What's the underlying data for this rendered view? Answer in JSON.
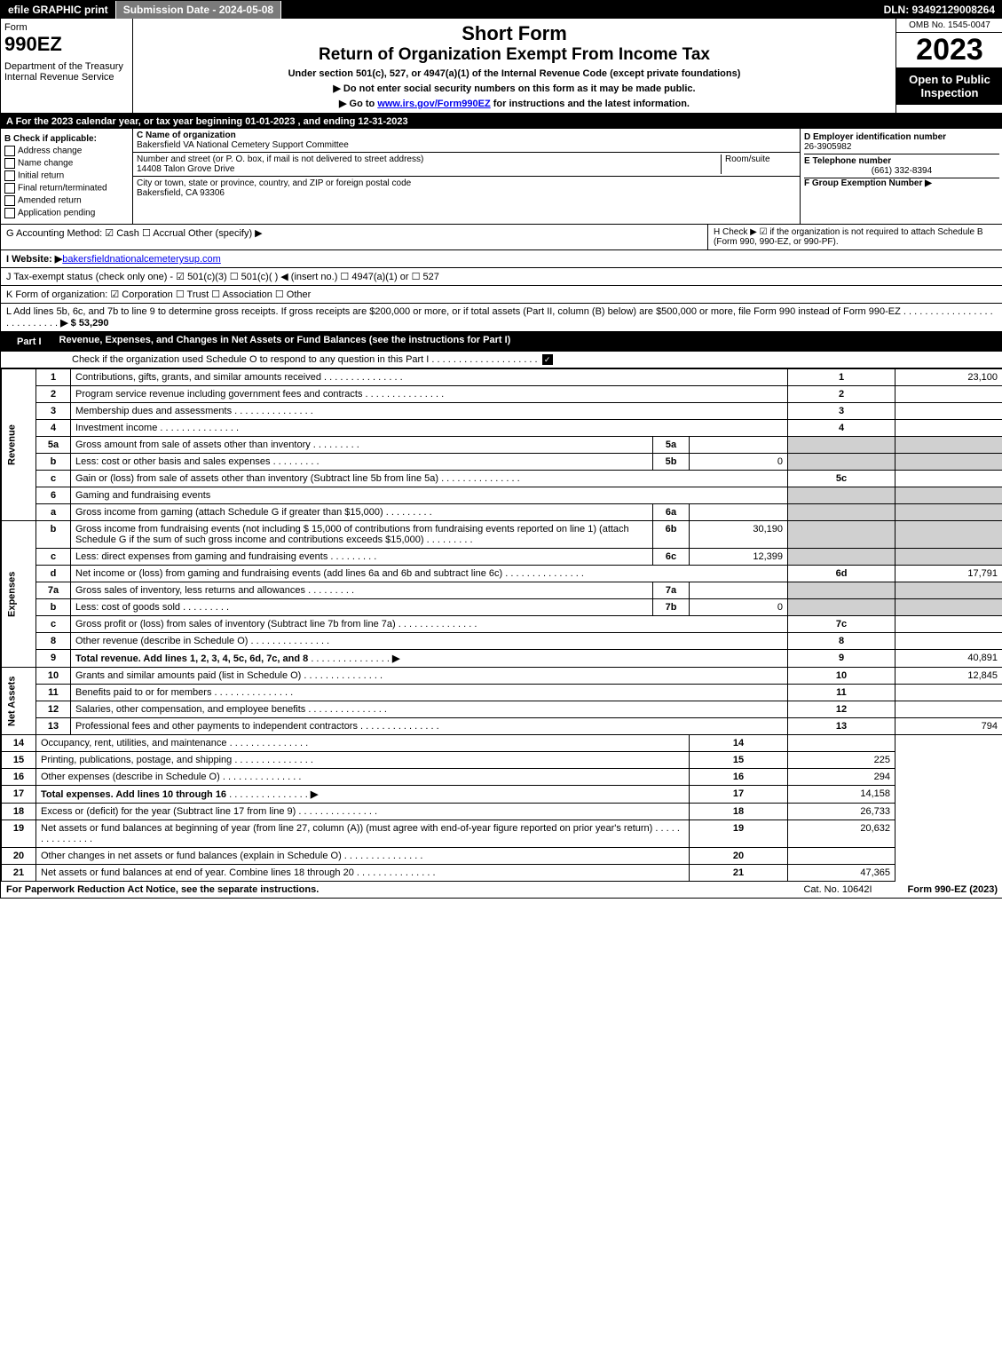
{
  "topbar": {
    "efile": "efile GRAPHIC print",
    "subdate_lbl": "Submission Date - 2024-05-08",
    "dln": "DLN: 93492129008264"
  },
  "header": {
    "form": "Form",
    "num": "990EZ",
    "dept": "Department of the Treasury\nInternal Revenue Service",
    "t1": "Short Form",
    "t2": "Return of Organization Exempt From Income Tax",
    "sub1": "Under section 501(c), 527, or 4947(a)(1) of the Internal Revenue Code (except private foundations)",
    "sub2": "▶ Do not enter social security numbers on this form as it may be made public.",
    "sub3": "▶ Go to ",
    "link": "www.irs.gov/Form990EZ",
    "sub3b": " for instructions and the latest information.",
    "omb": "OMB No. 1545-0047",
    "year": "2023",
    "open": "Open to Public Inspection"
  },
  "rowA": "A  For the 2023 calendar year, or tax year beginning 01-01-2023 , and ending 12-31-2023",
  "B": {
    "hdr": "B  Check if applicable:",
    "opts": [
      "Address change",
      "Name change",
      "Initial return",
      "Final return/terminated",
      "Amended return",
      "Application pending"
    ]
  },
  "C": {
    "name_lbl": "C Name of organization",
    "name": "Bakersfield VA National Cemetery Support Committee",
    "addr_lbl": "Number and street (or P. O. box, if mail is not delivered to street address)",
    "room_lbl": "Room/suite",
    "addr": "14408 Talon Grove Drive",
    "city_lbl": "City or town, state or province, country, and ZIP or foreign postal code",
    "city": "Bakersfield, CA  93306"
  },
  "D": {
    "ein_lbl": "D Employer identification number",
    "ein": "26-3905982",
    "tel_lbl": "E Telephone number",
    "tel": "(661) 332-8394",
    "grp_lbl": "F Group Exemption Number  ▶"
  },
  "G": "G Accounting Method:   ☑ Cash  ☐ Accrual   Other (specify) ▶",
  "H": "H   Check ▶  ☑  if the organization is not required to attach Schedule B (Form 990, 990-EZ, or 990-PF).",
  "I": {
    "lbl": "I Website: ▶",
    "val": "bakersfieldnationalcemeterysup.com"
  },
  "J": "J Tax-exempt status (check only one) - ☑ 501(c)(3) ☐ 501(c)(  ) ◀ (insert no.) ☐ 4947(a)(1) or ☐ 527",
  "K": "K Form of organization:   ☑ Corporation  ☐ Trust  ☐ Association  ☐ Other",
  "L": {
    "txt": "L Add lines 5b, 6c, and 7b to line 9 to determine gross receipts. If gross receipts are $200,000 or more, or if total assets (Part II, column (B) below) are $500,000 or more, file Form 990 instead of Form 990-EZ",
    "amt": "▶ $ 53,290"
  },
  "part1": {
    "lbl": "Part I",
    "title": "Revenue, Expenses, and Changes in Net Assets or Fund Balances (see the instructions for Part I)",
    "sub": "Check if the organization used Schedule O to respond to any question in this Part I"
  },
  "sections": {
    "rev": "Revenue",
    "exp": "Expenses",
    "na": "Net Assets"
  },
  "lines": [
    {
      "n": "1",
      "d": "Contributions, gifts, grants, and similar amounts received",
      "rn": "1",
      "v": "23,100"
    },
    {
      "n": "2",
      "d": "Program service revenue including government fees and contracts",
      "rn": "2",
      "v": ""
    },
    {
      "n": "3",
      "d": "Membership dues and assessments",
      "rn": "3",
      "v": ""
    },
    {
      "n": "4",
      "d": "Investment income",
      "rn": "4",
      "v": ""
    },
    {
      "n": "5a",
      "d": "Gross amount from sale of assets other than inventory",
      "sn": "5a",
      "sv": ""
    },
    {
      "n": "b",
      "d": "Less: cost or other basis and sales expenses",
      "sn": "5b",
      "sv": "0"
    },
    {
      "n": "c",
      "d": "Gain or (loss) from sale of assets other than inventory (Subtract line 5b from line 5a)",
      "rn": "5c",
      "v": ""
    },
    {
      "n": "6",
      "d": "Gaming and fundraising events"
    },
    {
      "n": "a",
      "d": "Gross income from gaming (attach Schedule G if greater than $15,000)",
      "sn": "6a",
      "sv": ""
    },
    {
      "n": "b",
      "d": "Gross income from fundraising events (not including $ 15,000 of contributions from fundraising events reported on line 1) (attach Schedule G if the sum of such gross income and contributions exceeds $15,000)",
      "sn": "6b",
      "sv": "30,190"
    },
    {
      "n": "c",
      "d": "Less: direct expenses from gaming and fundraising events",
      "sn": "6c",
      "sv": "12,399"
    },
    {
      "n": "d",
      "d": "Net income or (loss) from gaming and fundraising events (add lines 6a and 6b and subtract line 6c)",
      "rn": "6d",
      "v": "17,791"
    },
    {
      "n": "7a",
      "d": "Gross sales of inventory, less returns and allowances",
      "sn": "7a",
      "sv": ""
    },
    {
      "n": "b",
      "d": "Less: cost of goods sold",
      "sn": "7b",
      "sv": "0"
    },
    {
      "n": "c",
      "d": "Gross profit or (loss) from sales of inventory (Subtract line 7b from line 7a)",
      "rn": "7c",
      "v": ""
    },
    {
      "n": "8",
      "d": "Other revenue (describe in Schedule O)",
      "rn": "8",
      "v": ""
    },
    {
      "n": "9",
      "d": "Total revenue. Add lines 1, 2, 3, 4, 5c, 6d, 7c, and 8",
      "rn": "9",
      "v": "40,891",
      "bold": true,
      "arrow": true
    },
    {
      "n": "10",
      "d": "Grants and similar amounts paid (list in Schedule O)",
      "rn": "10",
      "v": "12,845"
    },
    {
      "n": "11",
      "d": "Benefits paid to or for members",
      "rn": "11",
      "v": ""
    },
    {
      "n": "12",
      "d": "Salaries, other compensation, and employee benefits",
      "rn": "12",
      "v": ""
    },
    {
      "n": "13",
      "d": "Professional fees and other payments to independent contractors",
      "rn": "13",
      "v": "794"
    },
    {
      "n": "14",
      "d": "Occupancy, rent, utilities, and maintenance",
      "rn": "14",
      "v": ""
    },
    {
      "n": "15",
      "d": "Printing, publications, postage, and shipping",
      "rn": "15",
      "v": "225"
    },
    {
      "n": "16",
      "d": "Other expenses (describe in Schedule O)",
      "rn": "16",
      "v": "294"
    },
    {
      "n": "17",
      "d": "Total expenses. Add lines 10 through 16",
      "rn": "17",
      "v": "14,158",
      "bold": true,
      "arrow": true
    },
    {
      "n": "18",
      "d": "Excess or (deficit) for the year (Subtract line 17 from line 9)",
      "rn": "18",
      "v": "26,733"
    },
    {
      "n": "19",
      "d": "Net assets or fund balances at beginning of year (from line 27, column (A)) (must agree with end-of-year figure reported on prior year's return)",
      "rn": "19",
      "v": "20,632"
    },
    {
      "n": "20",
      "d": "Other changes in net assets or fund balances (explain in Schedule O)",
      "rn": "20",
      "v": ""
    },
    {
      "n": "21",
      "d": "Net assets or fund balances at end of year. Combine lines 18 through 20",
      "rn": "21",
      "v": "47,365"
    }
  ],
  "footer": {
    "l": "For Paperwork Reduction Act Notice, see the separate instructions.",
    "c": "Cat. No. 10642I",
    "r": "Form 990-EZ (2023)"
  }
}
